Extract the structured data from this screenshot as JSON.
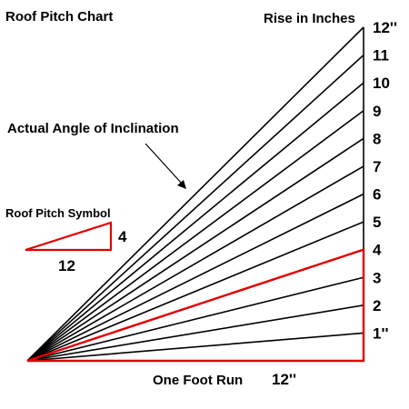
{
  "title": "Roof Pitch Chart",
  "rise_header": "Rise in Inches",
  "angle_caption": "Actual Angle of Inclination",
  "symbol": {
    "caption": "Roof Pitch Symbol",
    "rise": "4",
    "run": "12"
  },
  "run_caption": "One Foot Run",
  "run_value": "12''",
  "rise_labels": [
    "1''",
    "2",
    "3",
    "4",
    "5",
    "6",
    "7",
    "8",
    "9",
    "10",
    "11",
    "12''"
  ],
  "highlight_rise": 4,
  "colors": {
    "lines": "#000000",
    "highlight": "#e00000",
    "background": "#ffffff"
  }
}
